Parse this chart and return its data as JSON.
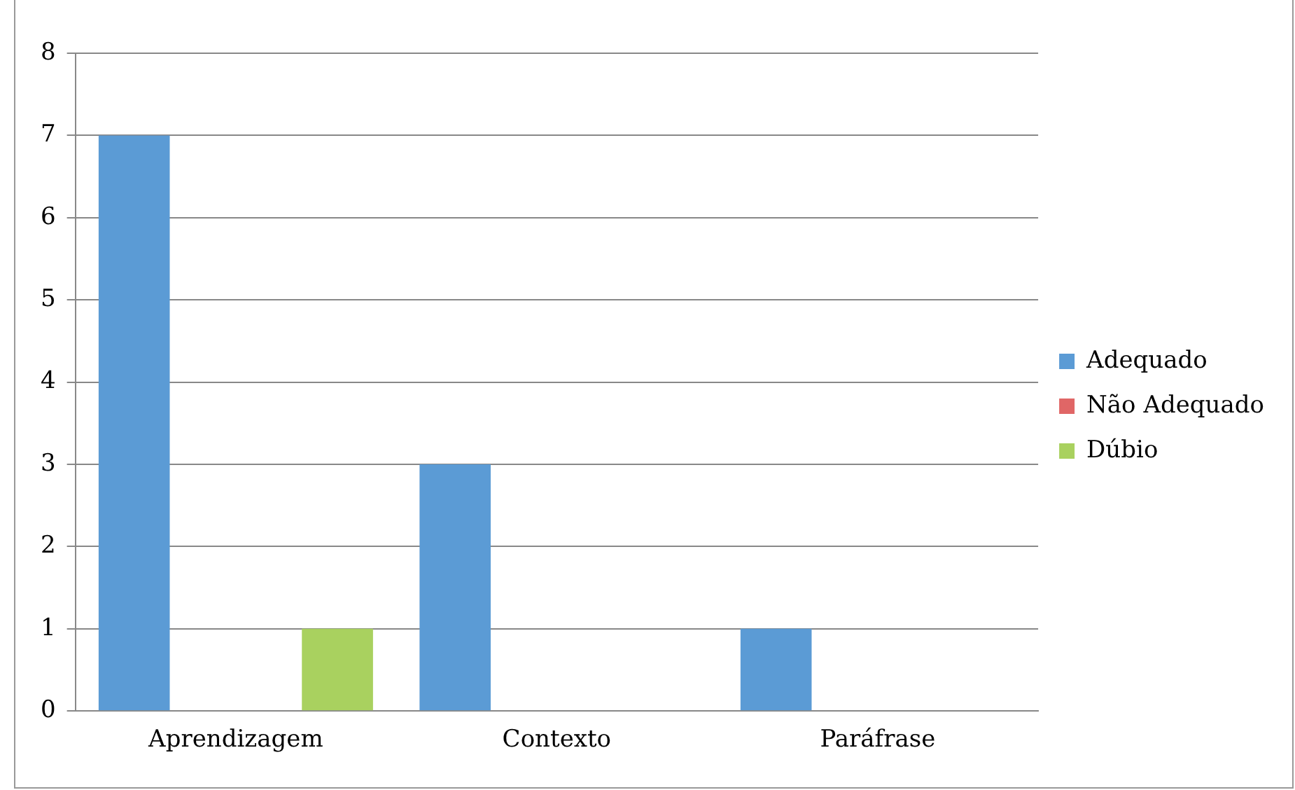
{
  "chart_data": {
    "type": "bar",
    "categories": [
      "Aprendizagem",
      "Contexto",
      "Paráfrase"
    ],
    "series": [
      {
        "name": "Adequado",
        "color": "#5b9bd5",
        "values": [
          7,
          3,
          1
        ]
      },
      {
        "name": "Não Adequado",
        "color": "#e06666",
        "values": [
          0,
          0,
          0
        ]
      },
      {
        "name": "Dúbio",
        "color": "#a9d15f",
        "values": [
          1,
          0,
          0
        ]
      }
    ],
    "ylim": [
      0,
      8
    ],
    "yticks": [
      0,
      1,
      2,
      3,
      4,
      5,
      6,
      7,
      8
    ],
    "grid": "y",
    "legend": "right"
  }
}
